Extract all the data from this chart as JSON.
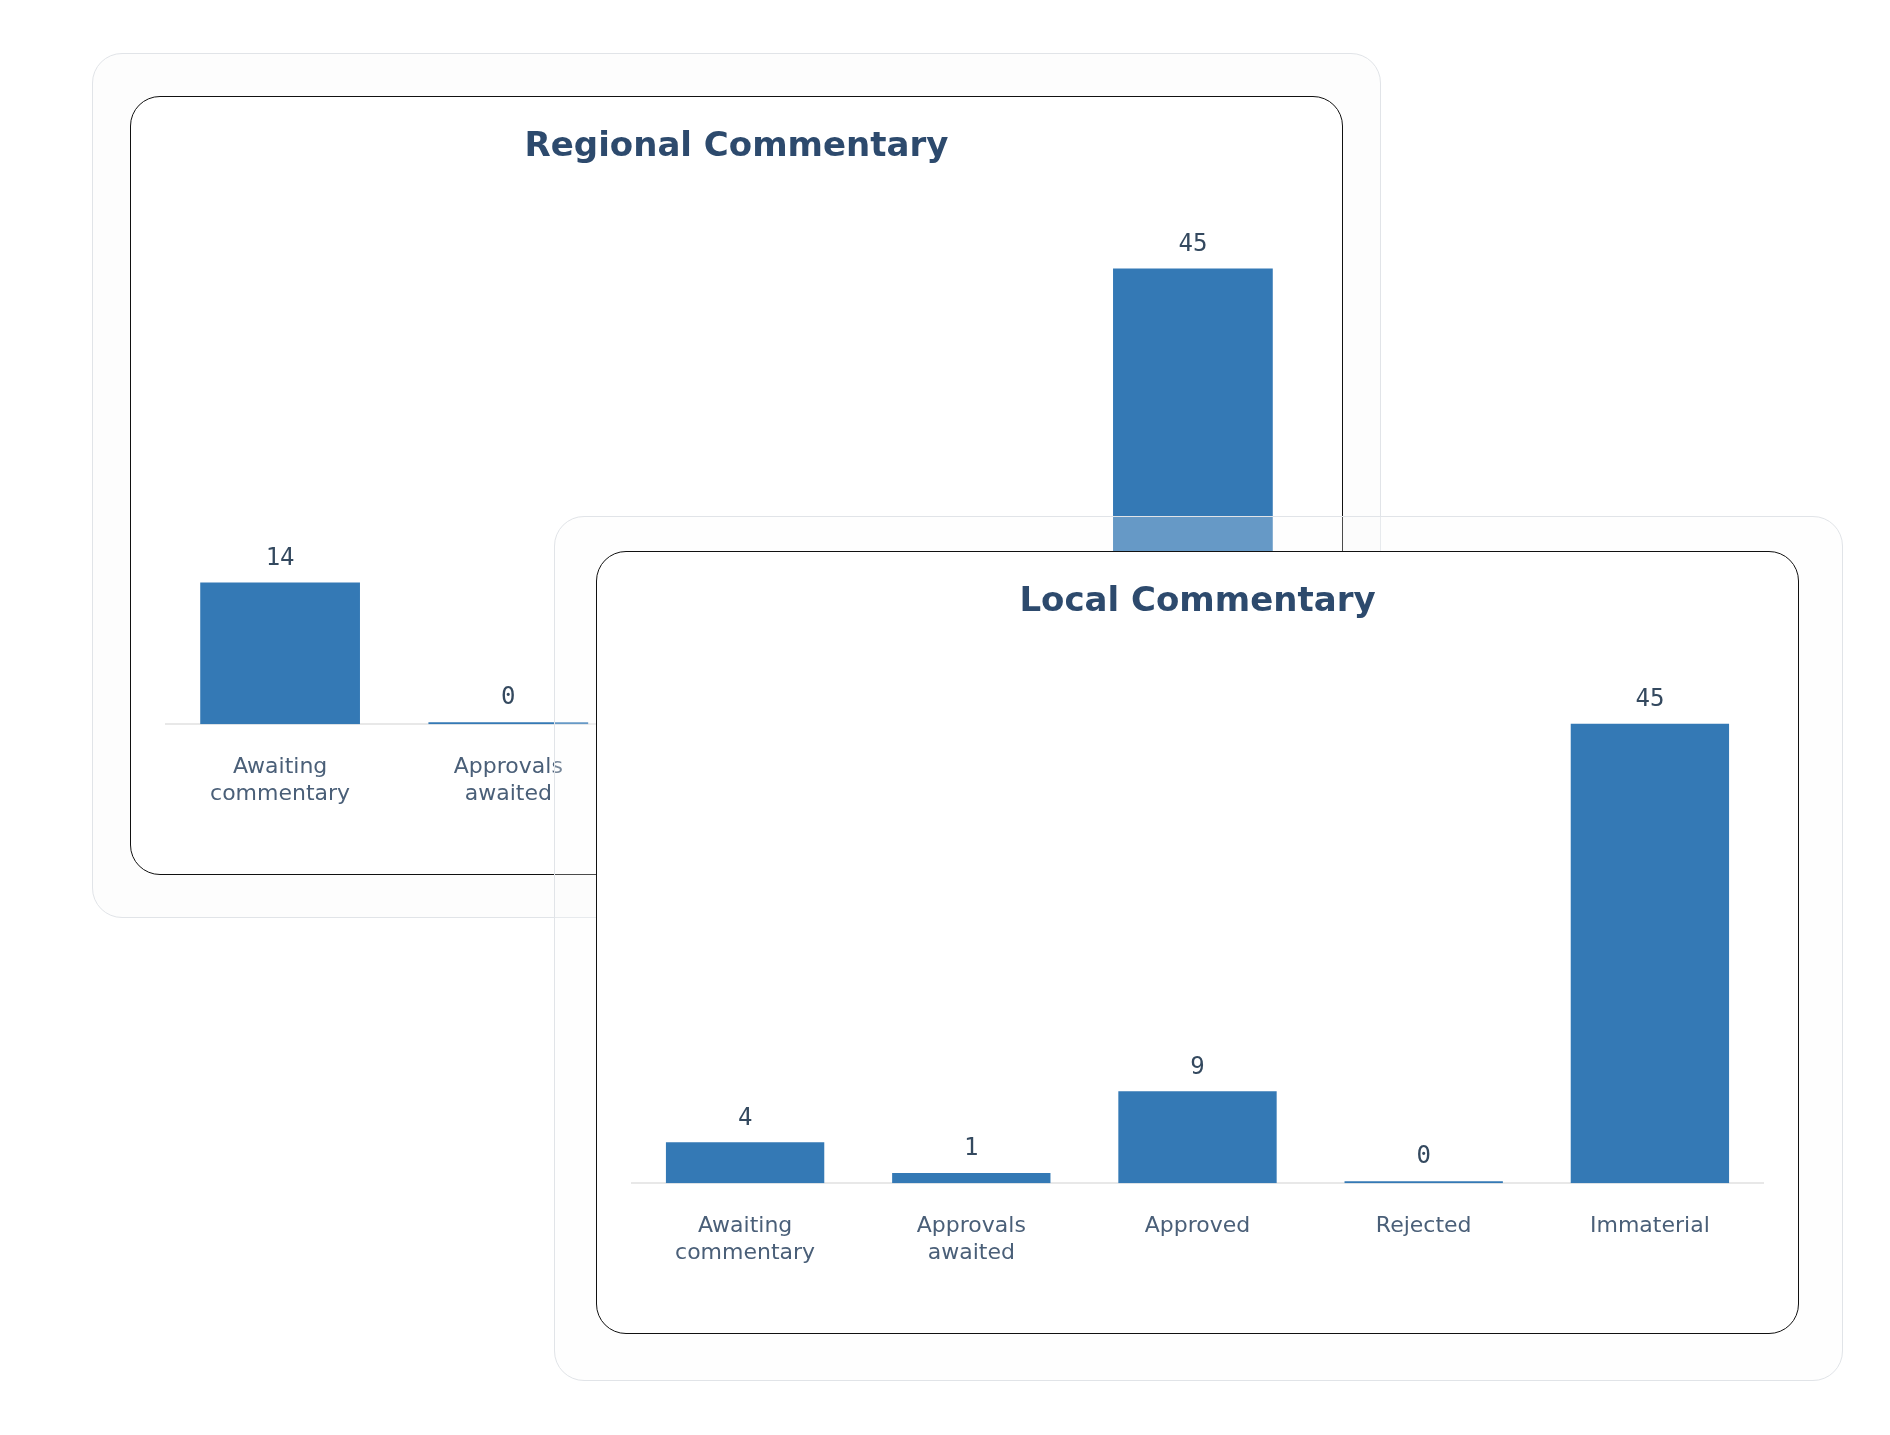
{
  "chart_data": [
    {
      "type": "bar",
      "title": "Regional Commentary",
      "categories": [
        "Awaiting commentary",
        "Approvals awaited",
        null,
        null,
        null
      ],
      "values": [
        14,
        0,
        null,
        null,
        45
      ],
      "color": "#3479b5",
      "data_labels": true
    },
    {
      "type": "bar",
      "title": "Local Commentary",
      "categories": [
        "Awaiting commentary",
        "Approvals awaited",
        "Approved",
        "Rejected",
        "Immaterial"
      ],
      "values": [
        4,
        1,
        9,
        0,
        45
      ],
      "color": "#3479b5",
      "data_labels": true
    }
  ]
}
